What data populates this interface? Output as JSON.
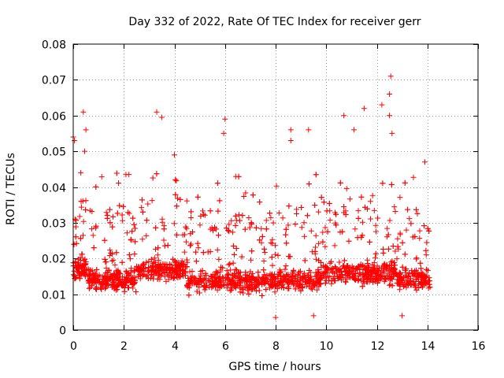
{
  "chart_data": {
    "type": "scatter",
    "title": "Day 332 of 2022, Rate Of TEC Index for receiver gerr",
    "xlabel": "GPS time / hours",
    "ylabel": "ROTI / TECUs",
    "xlim": [
      0,
      16
    ],
    "ylim": [
      0,
      0.08
    ],
    "x_ticks": [
      0,
      2,
      4,
      6,
      8,
      10,
      12,
      14,
      16
    ],
    "x_tick_labels": [
      "0",
      "2",
      "4",
      "6",
      "8",
      "10",
      "12",
      "14",
      "16"
    ],
    "y_ticks": [
      0,
      0.01,
      0.02,
      0.03,
      0.04,
      0.05,
      0.06,
      0.07,
      0.08
    ],
    "y_tick_labels": [
      "0",
      "0.01",
      "0.02",
      "0.03",
      "0.04",
      "0.05",
      "0.06",
      "0.07",
      "0.08"
    ],
    "grid": true,
    "marker": "+",
    "color": "#ff0000",
    "series": [
      {
        "name": "ROTI",
        "notable_points": [
          {
            "x": 0.0,
            "y": 0.054
          },
          {
            "x": 0.05,
            "y": 0.053
          },
          {
            "x": 0.4,
            "y": 0.061
          },
          {
            "x": 0.5,
            "y": 0.056
          },
          {
            "x": 0.45,
            "y": 0.05
          },
          {
            "x": 0.3,
            "y": 0.044
          },
          {
            "x": 2.2,
            "y": 0.0435
          },
          {
            "x": 3.3,
            "y": 0.061
          },
          {
            "x": 3.5,
            "y": 0.0595
          },
          {
            "x": 4.0,
            "y": 0.049
          },
          {
            "x": 6.0,
            "y": 0.059
          },
          {
            "x": 5.95,
            "y": 0.055
          },
          {
            "x": 8.6,
            "y": 0.056
          },
          {
            "x": 8.6,
            "y": 0.053
          },
          {
            "x": 9.3,
            "y": 0.056
          },
          {
            "x": 10.7,
            "y": 0.06
          },
          {
            "x": 11.1,
            "y": 0.056
          },
          {
            "x": 11.5,
            "y": 0.062
          },
          {
            "x": 12.2,
            "y": 0.063
          },
          {
            "x": 12.55,
            "y": 0.071
          },
          {
            "x": 12.5,
            "y": 0.066
          },
          {
            "x": 12.5,
            "y": 0.06
          },
          {
            "x": 12.6,
            "y": 0.055
          },
          {
            "x": 13.9,
            "y": 0.047
          },
          {
            "x": 8.0,
            "y": 0.0035
          },
          {
            "x": 9.5,
            "y": 0.004
          },
          {
            "x": 13.0,
            "y": 0.004
          }
        ]
      }
    ]
  }
}
